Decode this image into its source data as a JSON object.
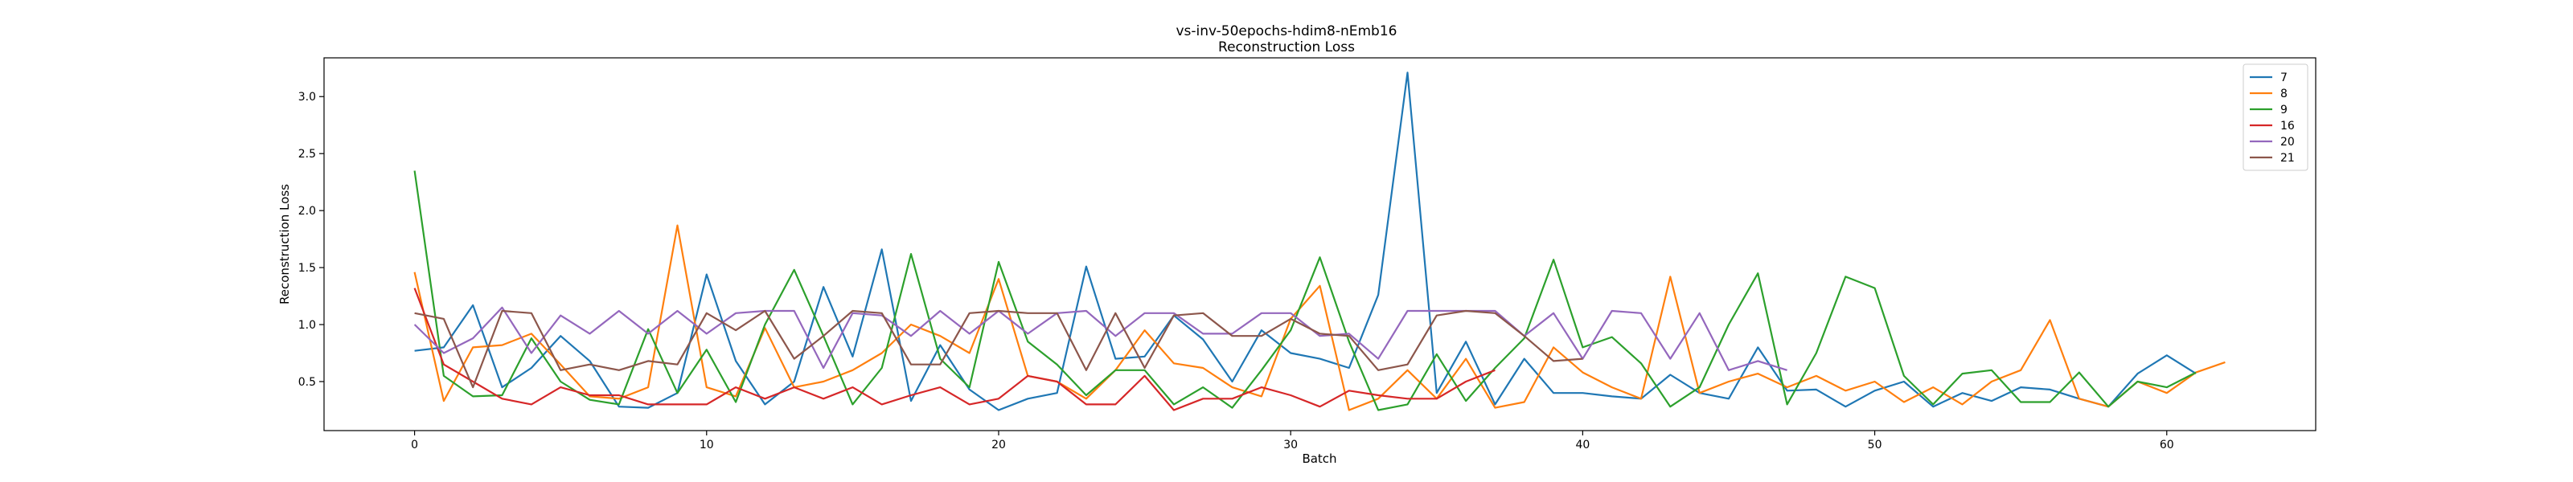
{
  "chart_data": {
    "type": "line",
    "title": "vs-inv-50epochs-hdim8-nEmb16",
    "subtitle": "Reconstruction Loss",
    "xlabel": "Batch",
    "ylabel": "Reconstruction Loss",
    "xlim": [
      -3.1,
      65.1
    ],
    "ylim": [
      0.07,
      3.34
    ],
    "xticks": [
      0,
      10,
      20,
      30,
      40,
      50,
      60
    ],
    "yticks": [
      0.5,
      1.0,
      1.5,
      2.0,
      2.5,
      3.0
    ],
    "ytick_labels": [
      "0.5",
      "1.0",
      "1.5",
      "2.0",
      "2.5",
      "3.0"
    ],
    "grid": false,
    "legend_position": "top-right",
    "series": [
      {
        "name": "7",
        "color": "#1f77b4",
        "values": [
          0.77,
          0.8,
          1.17,
          0.45,
          0.62,
          0.9,
          0.68,
          0.28,
          0.27,
          0.4,
          1.44,
          0.68,
          0.3,
          0.5,
          1.33,
          0.72,
          1.66,
          0.33,
          0.82,
          0.43,
          0.25,
          0.35,
          0.4,
          1.51,
          0.7,
          0.72,
          1.08,
          0.87,
          0.5,
          0.95,
          0.75,
          0.7,
          0.62,
          1.26,
          3.21,
          0.4,
          0.85,
          0.3,
          0.7,
          0.4,
          0.4,
          0.37,
          0.35,
          0.56,
          0.4,
          0.35,
          0.8,
          0.42,
          0.43,
          0.28,
          0.42,
          0.5,
          0.28,
          0.4,
          0.33,
          0.45,
          0.43,
          0.35,
          0.28,
          0.57,
          0.73,
          0.57
        ]
      },
      {
        "name": "8",
        "color": "#ff7f0e",
        "values": [
          1.46,
          0.33,
          0.8,
          0.82,
          0.92,
          0.65,
          0.37,
          0.35,
          0.45,
          1.87,
          0.45,
          0.37,
          0.97,
          0.45,
          0.5,
          0.6,
          0.75,
          1.0,
          0.9,
          0.75,
          1.4,
          0.55,
          0.5,
          0.35,
          0.6,
          0.95,
          0.66,
          0.62,
          0.45,
          0.37,
          1.05,
          1.34,
          0.25,
          0.35,
          0.6,
          0.35,
          0.7,
          0.27,
          0.32,
          0.8,
          0.58,
          0.45,
          0.35,
          1.42,
          0.4,
          0.5,
          0.57,
          0.45,
          0.55,
          0.42,
          0.5,
          0.32,
          0.45,
          0.3,
          0.5,
          0.6,
          1.04,
          0.35,
          0.28,
          0.5,
          0.4,
          0.58,
          0.67
        ]
      },
      {
        "name": "9",
        "color": "#2ca02c",
        "values": [
          2.35,
          0.55,
          0.37,
          0.38,
          0.88,
          0.5,
          0.34,
          0.3,
          0.96,
          0.4,
          0.78,
          0.32,
          1.0,
          1.48,
          0.9,
          0.3,
          0.62,
          1.62,
          0.7,
          0.45,
          1.55,
          0.85,
          0.65,
          0.38,
          0.6,
          0.6,
          0.3,
          0.45,
          0.27,
          0.6,
          0.95,
          1.59,
          0.85,
          0.25,
          0.3,
          0.74,
          0.33,
          0.62,
          0.88,
          1.57,
          0.8,
          0.89,
          0.66,
          0.28,
          0.45,
          1.0,
          1.45,
          0.3,
          0.75,
          1.42,
          1.32,
          0.55,
          0.3,
          0.57,
          0.6,
          0.32,
          0.32,
          0.58,
          0.28,
          0.5,
          0.45,
          0.58
        ]
      },
      {
        "name": "16",
        "color": "#d62728",
        "values": [
          1.32,
          0.65,
          0.5,
          0.35,
          0.3,
          0.45,
          0.38,
          0.38,
          0.3,
          0.3,
          0.3,
          0.45,
          0.35,
          0.45,
          0.35,
          0.45,
          0.3,
          0.38,
          0.45,
          0.3,
          0.35,
          0.55,
          0.5,
          0.3,
          0.3,
          0.55,
          0.25,
          0.35,
          0.35,
          0.45,
          0.38,
          0.28,
          0.42,
          0.38,
          0.35,
          0.35,
          0.5,
          0.6
        ]
      },
      {
        "name": "20",
        "color": "#9467bd",
        "values": [
          1.0,
          0.75,
          0.88,
          1.15,
          0.75,
          1.08,
          0.92,
          1.12,
          0.92,
          1.12,
          0.92,
          1.1,
          1.12,
          1.12,
          0.62,
          1.1,
          1.08,
          0.9,
          1.12,
          0.92,
          1.12,
          0.92,
          1.1,
          1.12,
          0.9,
          1.1,
          1.1,
          0.92,
          0.92,
          1.1,
          1.1,
          0.9,
          0.92,
          0.7,
          1.12,
          1.12,
          1.12,
          1.12,
          0.9,
          1.1,
          0.7,
          1.12,
          1.1,
          0.7,
          1.1,
          0.6,
          0.68,
          0.6
        ]
      },
      {
        "name": "21",
        "color": "#8c564b",
        "values": [
          1.1,
          1.05,
          0.45,
          1.12,
          1.1,
          0.6,
          0.65,
          0.6,
          0.68,
          0.65,
          1.1,
          0.95,
          1.12,
          0.7,
          0.9,
          1.12,
          1.1,
          0.65,
          0.65,
          1.1,
          1.12,
          1.1,
          1.1,
          0.6,
          1.1,
          0.62,
          1.08,
          1.1,
          0.9,
          0.9,
          1.05,
          0.92,
          0.9,
          0.6,
          0.65,
          1.08,
          1.12,
          1.1,
          0.9,
          0.68,
          0.7
        ]
      }
    ]
  }
}
